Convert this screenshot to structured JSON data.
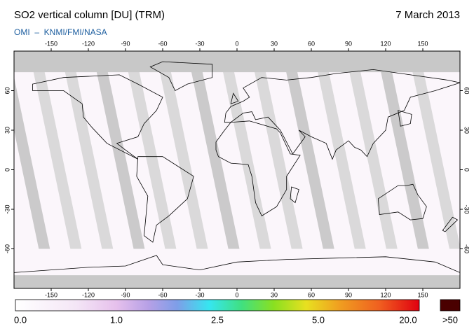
{
  "header": {
    "title": "SO2 vertical column [DU] (TRM)",
    "date": "7 March 2013",
    "subtitle": "OMI  –  KNMI/FMI/NASA"
  },
  "map": {
    "xlim": [
      -180,
      180
    ],
    "ylim": [
      -90,
      90
    ],
    "lon_ticks": [
      -150,
      -120,
      -90,
      -60,
      -30,
      0,
      30,
      60,
      90,
      120,
      150
    ],
    "lat_ticks": [
      60,
      30,
      0,
      -30,
      -60
    ]
  },
  "colorbar": {
    "labels": [
      "0.0",
      "1.0",
      "2.5",
      "5.0",
      "20.0"
    ],
    "overflow_label": ">50"
  }
}
